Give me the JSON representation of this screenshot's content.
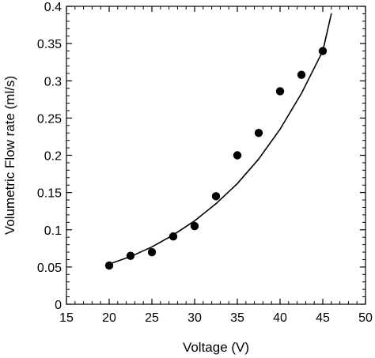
{
  "chart_data": {
    "type": "scatter",
    "title": "",
    "xlabel": "Voltage (V)",
    "ylabel": "Volumetric Flow rate (ml/s)",
    "xlim": [
      15,
      50
    ],
    "ylim": [
      0,
      0.4
    ],
    "x_ticks": [
      "15",
      "20",
      "25",
      "30",
      "35",
      "40",
      "45",
      "50"
    ],
    "y_ticks": [
      "0",
      "0.05",
      "0.1",
      "0.15",
      "0.2",
      "0.25",
      "0.3",
      "0.35",
      "0.4"
    ],
    "x_tick_values": [
      15,
      20,
      25,
      30,
      35,
      40,
      45,
      50
    ],
    "y_tick_values": [
      0,
      0.05,
      0.1,
      0.15,
      0.2,
      0.25,
      0.3,
      0.35,
      0.4
    ],
    "grid": false,
    "colors": {
      "marker": "#000000",
      "line": "#000000",
      "axes": "#000000"
    },
    "series": [
      {
        "kind": "points",
        "x": [
          20,
          22.5,
          25,
          27.5,
          30,
          32.5,
          35,
          37.5,
          40,
          42.5,
          45
        ],
        "y": [
          0.052,
          0.065,
          0.07,
          0.091,
          0.105,
          0.145,
          0.2,
          0.23,
          0.286,
          0.308,
          0.34
        ]
      },
      {
        "kind": "fit-line",
        "x": [
          20,
          22.5,
          25,
          27.5,
          30,
          32.5,
          35,
          37.5,
          40,
          42.5,
          45
        ],
        "y": [
          0.054,
          0.064,
          0.077,
          0.093,
          0.112,
          0.135,
          0.162,
          0.195,
          0.235,
          0.283,
          0.34
        ]
      },
      {
        "kind": "fit-line-extension",
        "x": [
          45,
          46
        ],
        "y": [
          0.34,
          0.39
        ]
      }
    ]
  }
}
